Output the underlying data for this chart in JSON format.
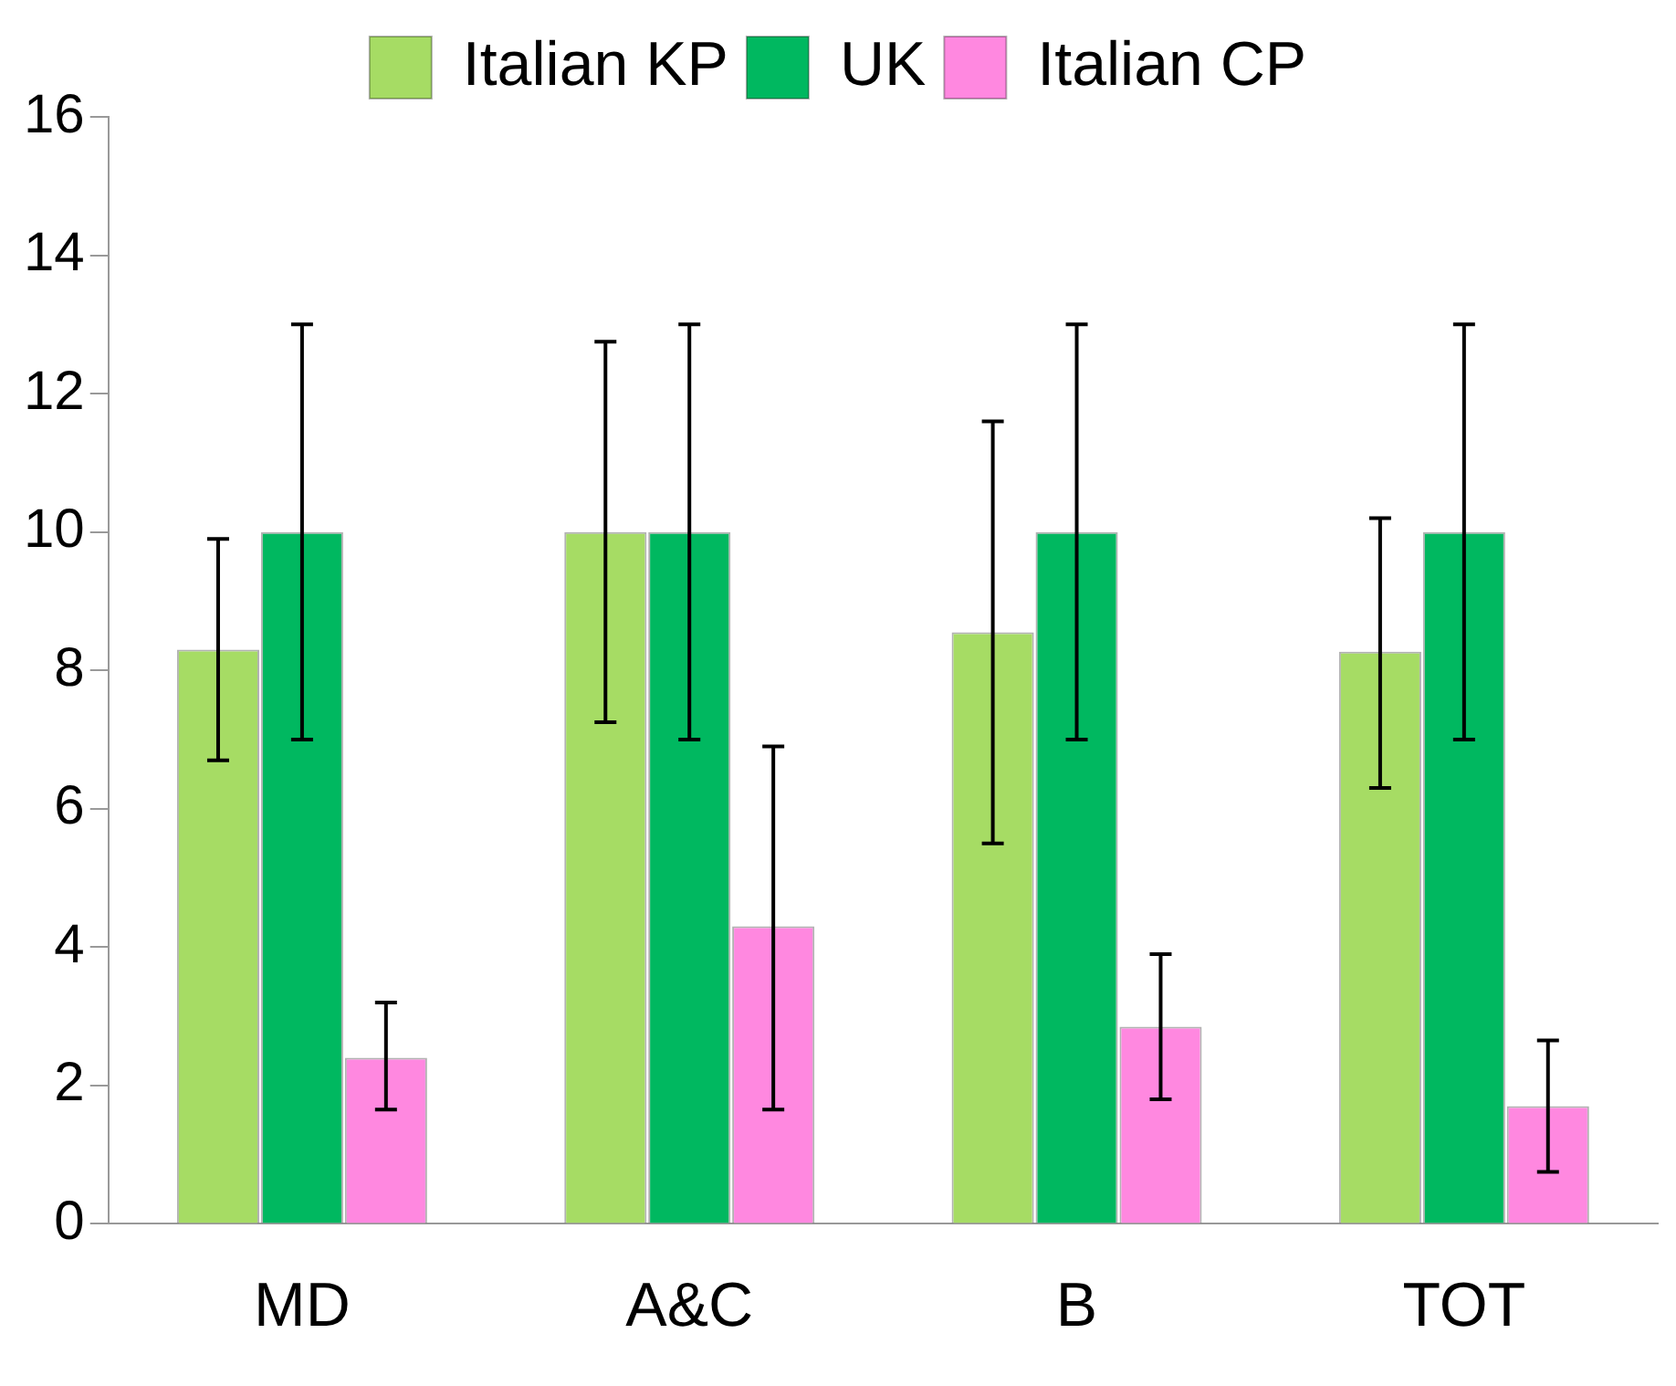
{
  "chart_data": {
    "type": "bar",
    "categories": [
      "MD",
      "A&C",
      "B",
      "TOT"
    ],
    "series": [
      {
        "name": "Italian KP",
        "color": "#a6dc64",
        "values": [
          8.3,
          10,
          8.55,
          8.27
        ],
        "errors": [
          [
            6.7,
            9.9
          ],
          [
            7.25,
            12.75
          ],
          [
            5.5,
            11.6
          ],
          [
            6.3,
            10.2
          ]
        ]
      },
      {
        "name": "UK",
        "color": "#00b860",
        "values": [
          10,
          10,
          10,
          10
        ],
        "errors": [
          [
            7,
            13
          ],
          [
            7,
            13
          ],
          [
            7,
            13
          ],
          [
            7,
            13
          ]
        ]
      },
      {
        "name": "Italian CP",
        "color": "#ff88e0",
        "values": [
          2.4,
          4.3,
          2.85,
          1.7
        ],
        "errors": [
          [
            1.65,
            3.2
          ],
          [
            1.65,
            6.9
          ],
          [
            1.8,
            3.9
          ],
          [
            0.75,
            2.65
          ]
        ]
      }
    ],
    "ylim": [
      0,
      16
    ],
    "yticks": [
      0,
      2,
      4,
      6,
      8,
      10,
      12,
      14,
      16
    ],
    "grid": false,
    "legend": "top"
  }
}
